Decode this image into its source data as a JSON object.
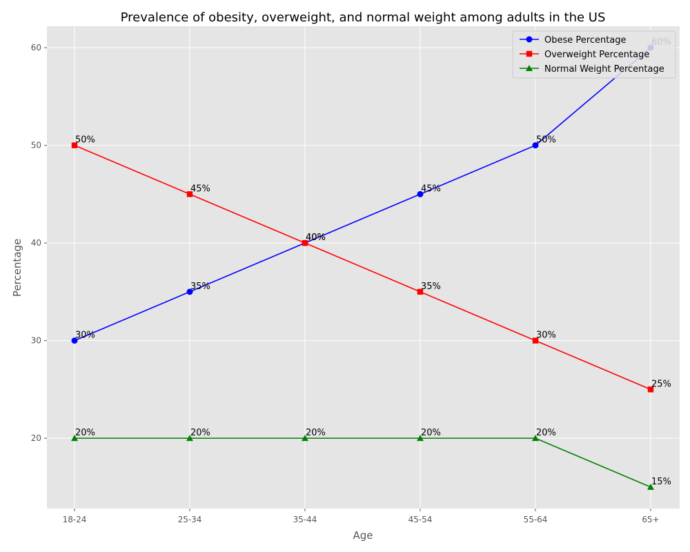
{
  "chart_data": {
    "type": "line",
    "title": "Prevalence of obesity, overweight, and normal weight among adults in the US",
    "xlabel": "Age",
    "ylabel": "Percentage",
    "categories": [
      "18-24",
      "25-34",
      "35-44",
      "45-54",
      "55-64",
      "65+"
    ],
    "ylim": [
      12.8,
      62.2
    ],
    "yticks": [
      20,
      30,
      40,
      50,
      60
    ],
    "grid": true,
    "legend_position": "top-right",
    "series": [
      {
        "name": "Obese Percentage",
        "values": [
          30,
          35,
          40,
          45,
          50,
          60
        ],
        "labels": [
          "30%",
          "35%",
          "40%",
          "45%",
          "50%",
          "60%"
        ],
        "color": "#0000ff",
        "marker": "circle"
      },
      {
        "name": "Overweight Percentage",
        "values": [
          50,
          45,
          40,
          35,
          30,
          25
        ],
        "labels": [
          "50%",
          "45%",
          "40%",
          "35%",
          "30%",
          "25%"
        ],
        "color": "#ff0000",
        "marker": "square"
      },
      {
        "name": "Normal Weight Percentage",
        "values": [
          20,
          20,
          20,
          20,
          20,
          15
        ],
        "labels": [
          "20%",
          "20%",
          "20%",
          "20%",
          "20%",
          "15%"
        ],
        "color": "#008000",
        "marker": "triangle"
      }
    ],
    "colors": {
      "plot_background": "#e5e5e5",
      "grid": "#ffffff",
      "tick_text": "#555555"
    }
  }
}
